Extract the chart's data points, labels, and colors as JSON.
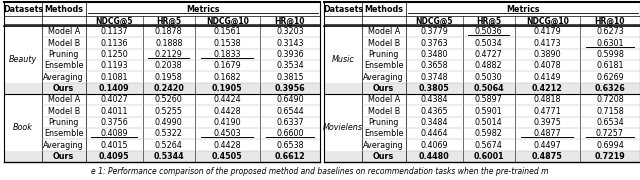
{
  "caption": "e 1: Performance comparison of the proposed method and baselines on recommendation tasks when the pre-trained m",
  "header_datasets": "Datasets",
  "header_methods": "Methods",
  "header_metrics": "Metrics",
  "metric_cols": [
    "NDCG@5",
    "HR@5",
    "NDCG@10",
    "HR@10"
  ],
  "methods": [
    "Model A",
    "Model B",
    "Pruning",
    "Ensemble",
    "Averaging",
    "Ours"
  ],
  "data": {
    "Beauty": {
      "Model A": [
        "0.1137",
        "0.1878",
        "0.1561",
        "0.3203"
      ],
      "Model B": [
        "0.1136",
        "0.1888",
        "0.1538",
        "0.3143"
      ],
      "Pruning": [
        "0.1250",
        "0.2129",
        "0.1833",
        "0.3936"
      ],
      "Ensemble": [
        "0.1193",
        "0.2038",
        "0.1679",
        "0.3534"
      ],
      "Averaging": [
        "0.1081",
        "0.1958",
        "0.1682",
        "0.3815"
      ],
      "Ours": [
        "0.1409",
        "0.2420",
        "0.1905",
        "0.3956"
      ]
    },
    "Book": {
      "Model A": [
        "0.4027",
        "0.5260",
        "0.4424",
        "0.6490"
      ],
      "Model B": [
        "0.4011",
        "0.5255",
        "0.4428",
        "0.6544"
      ],
      "Pruning": [
        "0.3756",
        "0.4990",
        "0.4190",
        "0.6337"
      ],
      "Ensemble": [
        "0.4089",
        "0.5322",
        "0.4503",
        "0.6600"
      ],
      "Averaging": [
        "0.4015",
        "0.5264",
        "0.4428",
        "0.6538"
      ],
      "Ours": [
        "0.4095",
        "0.5344",
        "0.4505",
        "0.6612"
      ]
    },
    "Music": {
      "Model A": [
        "0.3779",
        "0.5036",
        "0.4179",
        "0.6273"
      ],
      "Model B": [
        "0.3763",
        "0.5034",
        "0.4173",
        "0.6301"
      ],
      "Pruning": [
        "0.3480",
        "0.4727",
        "0.3890",
        "0.5998"
      ],
      "Ensemble": [
        "0.3658",
        "0.4882",
        "0.4078",
        "0.6181"
      ],
      "Averaging": [
        "0.3748",
        "0.5030",
        "0.4149",
        "0.6269"
      ],
      "Ours": [
        "0.3805",
        "0.5064",
        "0.4212",
        "0.6326"
      ]
    },
    "Movielens": {
      "Model A": [
        "0.4384",
        "0.5897",
        "0.4818",
        "0.7208"
      ],
      "Model B": [
        "0.4365",
        "0.5901",
        "0.4771",
        "0.7158"
      ],
      "Pruning": [
        "0.3484",
        "0.5014",
        "0.3975",
        "0.6534"
      ],
      "Ensemble": [
        "0.4464",
        "0.5982",
        "0.4877",
        "0.7257"
      ],
      "Averaging": [
        "0.4069",
        "0.5674",
        "0.4497",
        "0.6994"
      ],
      "Ours": [
        "0.4480",
        "0.6001",
        "0.4875",
        "0.7219"
      ]
    }
  },
  "underline": {
    "Beauty": {
      "Pruning": [
        0,
        1,
        1,
        0
      ],
      "Ensemble": [
        0,
        0,
        0,
        0
      ]
    },
    "Book": {
      "Ensemble": [
        1,
        0,
        1,
        1
      ]
    },
    "Music": {
      "Model A": [
        0,
        1,
        0,
        0
      ],
      "Model B": [
        0,
        0,
        0,
        1
      ]
    },
    "Movielens": {
      "Ensemble": [
        0,
        0,
        1,
        1
      ]
    }
  },
  "font_size": 5.8
}
